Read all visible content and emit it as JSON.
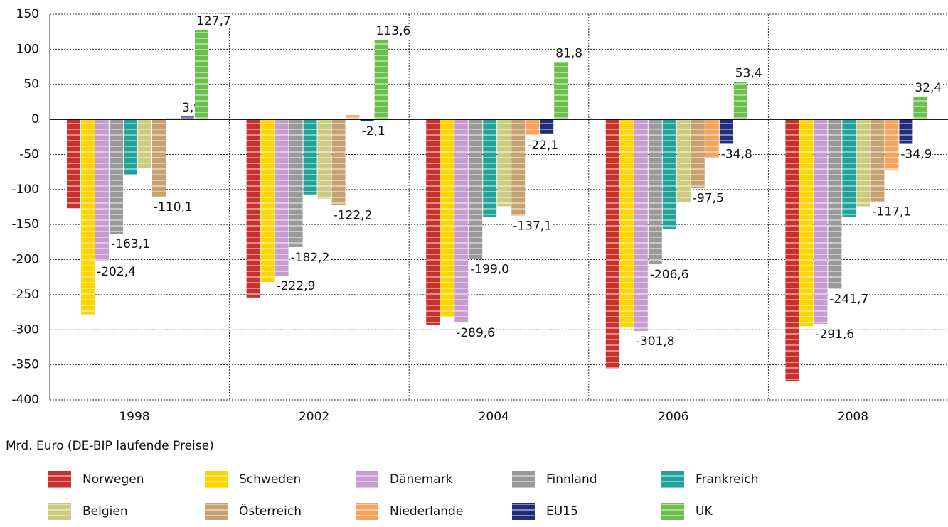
{
  "chart_data": {
    "type": "bar",
    "y_axis_label": "Mrd. Euro (DE-BIP laufende Preise)",
    "categories": [
      "1998",
      "2002",
      "2004",
      "2006",
      "2008"
    ],
    "ylim": [
      -400,
      150
    ],
    "yticks": [
      -400,
      -350,
      -300,
      -250,
      -200,
      -150,
      -100,
      -50,
      0,
      50,
      100,
      150
    ],
    "grid": true,
    "series": [
      {
        "name": "Norwegen",
        "color": "#c9302c",
        "values": [
          -127,
          -254,
          -293,
          -355,
          -373
        ]
      },
      {
        "name": "Schweden",
        "color": "#ffd400",
        "values": [
          -278,
          -232,
          -282,
          -297,
          -295
        ]
      },
      {
        "name": "Dänemark",
        "color": "#c79cd0",
        "values": [
          -202.4,
          -222.9,
          -289.6,
          -301.8,
          -291.6
        ],
        "value_labels": [
          "-202,4",
          "-222,9",
          "-289,6",
          "-301,8",
          "-291,6"
        ]
      },
      {
        "name": "Finnland",
        "color": "#999999",
        "values": [
          -163.1,
          -182.2,
          -199.0,
          -206.6,
          -241.7
        ],
        "value_labels": [
          "-163,1",
          "-182,2",
          "-199,0",
          "-206,6",
          "-241,7"
        ]
      },
      {
        "name": "Frankreich",
        "color": "#1fa39a",
        "values": [
          -80,
          -107,
          -139,
          -156,
          -139
        ]
      },
      {
        "name": "Belgien",
        "color": "#cccc80",
        "values": [
          -69,
          -113,
          -124,
          -118,
          -124
        ]
      },
      {
        "name": "Österreich",
        "color": "#c6a172",
        "values": [
          -110.1,
          -122.2,
          -137.1,
          -97.5,
          -117.1
        ],
        "value_labels": [
          "-110,1",
          "-122,2",
          "-137,1",
          "-97,5",
          "-117,1"
        ]
      },
      {
        "name": "Niederlande",
        "color": "#f7a35c",
        "values": [
          2,
          6,
          -22.1,
          -55,
          -73
        ],
        "value_labels": [
          null,
          null,
          "-22,1",
          null,
          null
        ]
      },
      {
        "name": "EU15",
        "color": "#1f2e7a",
        "values": [
          3.9,
          -2.1,
          -20,
          -34.8,
          -34.9
        ],
        "value_labels": [
          "3,9",
          "-2,1",
          null,
          "-34,8",
          "-34,9"
        ]
      },
      {
        "name": "UK",
        "color": "#6cbf4a",
        "values": [
          127.7,
          113.6,
          81.8,
          53.4,
          32.4
        ],
        "value_labels": [
          "127,7",
          "113,6",
          "81,8",
          "53,4",
          "32,4"
        ]
      }
    ]
  }
}
